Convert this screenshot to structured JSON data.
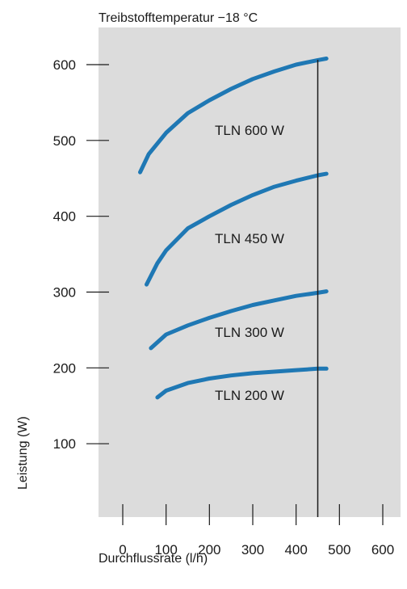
{
  "chart_data": {
    "type": "line",
    "title": "Treibstofftemperatur −18 °C",
    "xlabel": "Durchflussrate (l/h)",
    "ylabel": "Leistung (W)",
    "xlim": [
      -55,
      655
    ],
    "ylim": [
      0,
      650
    ],
    "x_ticks": [
      0,
      100,
      200,
      300,
      400,
      500,
      600
    ],
    "y_ticks": [
      100,
      200,
      300,
      400,
      500,
      600
    ],
    "reference_line_x": 450,
    "grid": false,
    "background_color": "#dcdcdc",
    "line_color": "#1f78b4",
    "series": [
      {
        "name": "TLN 600 W",
        "points": [
          [
            40,
            458
          ],
          [
            60,
            482
          ],
          [
            100,
            510
          ],
          [
            150,
            536
          ],
          [
            200,
            553
          ],
          [
            250,
            568
          ],
          [
            300,
            581
          ],
          [
            350,
            591
          ],
          [
            400,
            600
          ],
          [
            450,
            606
          ],
          [
            470,
            608
          ]
        ]
      },
      {
        "name": "TLN 450 W",
        "points": [
          [
            55,
            310
          ],
          [
            80,
            338
          ],
          [
            100,
            355
          ],
          [
            150,
            384
          ],
          [
            200,
            400
          ],
          [
            250,
            415
          ],
          [
            300,
            428
          ],
          [
            350,
            439
          ],
          [
            400,
            447
          ],
          [
            450,
            454
          ],
          [
            470,
            456
          ]
        ]
      },
      {
        "name": "TLN 300 W",
        "points": [
          [
            65,
            226
          ],
          [
            100,
            244
          ],
          [
            150,
            256
          ],
          [
            200,
            266
          ],
          [
            250,
            275
          ],
          [
            300,
            283
          ],
          [
            350,
            289
          ],
          [
            400,
            295
          ],
          [
            450,
            299
          ],
          [
            470,
            301
          ]
        ]
      },
      {
        "name": "TLN 200 W",
        "points": [
          [
            80,
            161
          ],
          [
            100,
            170
          ],
          [
            150,
            180
          ],
          [
            200,
            186
          ],
          [
            250,
            190
          ],
          [
            300,
            193
          ],
          [
            350,
            195
          ],
          [
            400,
            197
          ],
          [
            450,
            199
          ],
          [
            470,
            199
          ]
        ]
      }
    ]
  }
}
